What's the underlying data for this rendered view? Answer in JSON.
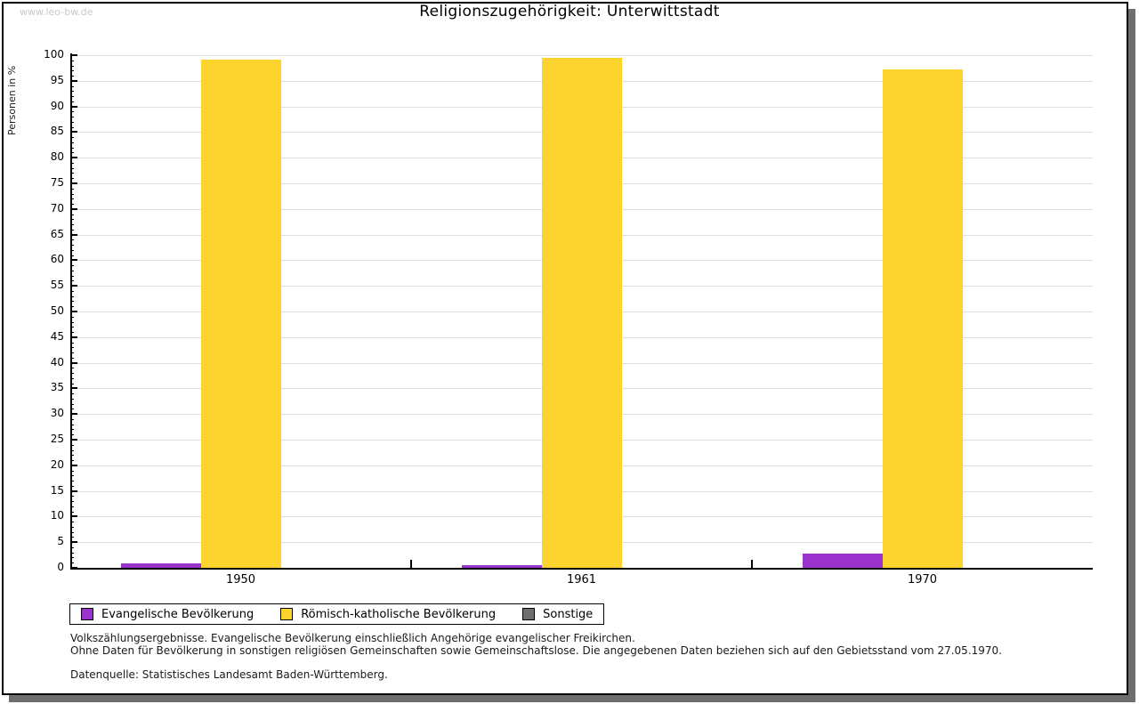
{
  "watermark": "www.leo-bw.de",
  "chart_data": {
    "type": "bar",
    "title": "Religionszugehörigkeit: Unterwittstadt",
    "ylabel": "Personen in %",
    "ylim": [
      0,
      100
    ],
    "ytick_major_step": 5,
    "ytick_minor_step": 1,
    "grid": true,
    "legend_position": "bottom-left",
    "axis_color": "#000000",
    "grid_color": "#dedede",
    "categories": [
      "1950",
      "1961",
      "1970"
    ],
    "series": [
      {
        "name": "Evangelische Bevölkerung",
        "color": "#9933cc",
        "values": [
          0.9,
          0.6,
          2.8
        ]
      },
      {
        "name": "Römisch-katholische Bevölkerung",
        "color": "#fdd32e",
        "values": [
          99.1,
          99.4,
          97.2
        ]
      },
      {
        "name": "Sonstige",
        "color": "#6e6e6e",
        "values": [
          0,
          0,
          0
        ]
      }
    ]
  },
  "footer": {
    "notes": [
      "Volkszählungsergebnisse. Evangelische Bevölkerung einschließlich Angehörige evangelischer Freikirchen.",
      "Ohne Daten für Bevölkerung in sonstigen religiösen Gemeinschaften sowie Gemeinschaftslose. Die angegebenen Daten beziehen sich auf den Gebietsstand vom 27.05.1970."
    ],
    "source": "Datenquelle: Statistisches Landesamt Baden-Württemberg."
  }
}
